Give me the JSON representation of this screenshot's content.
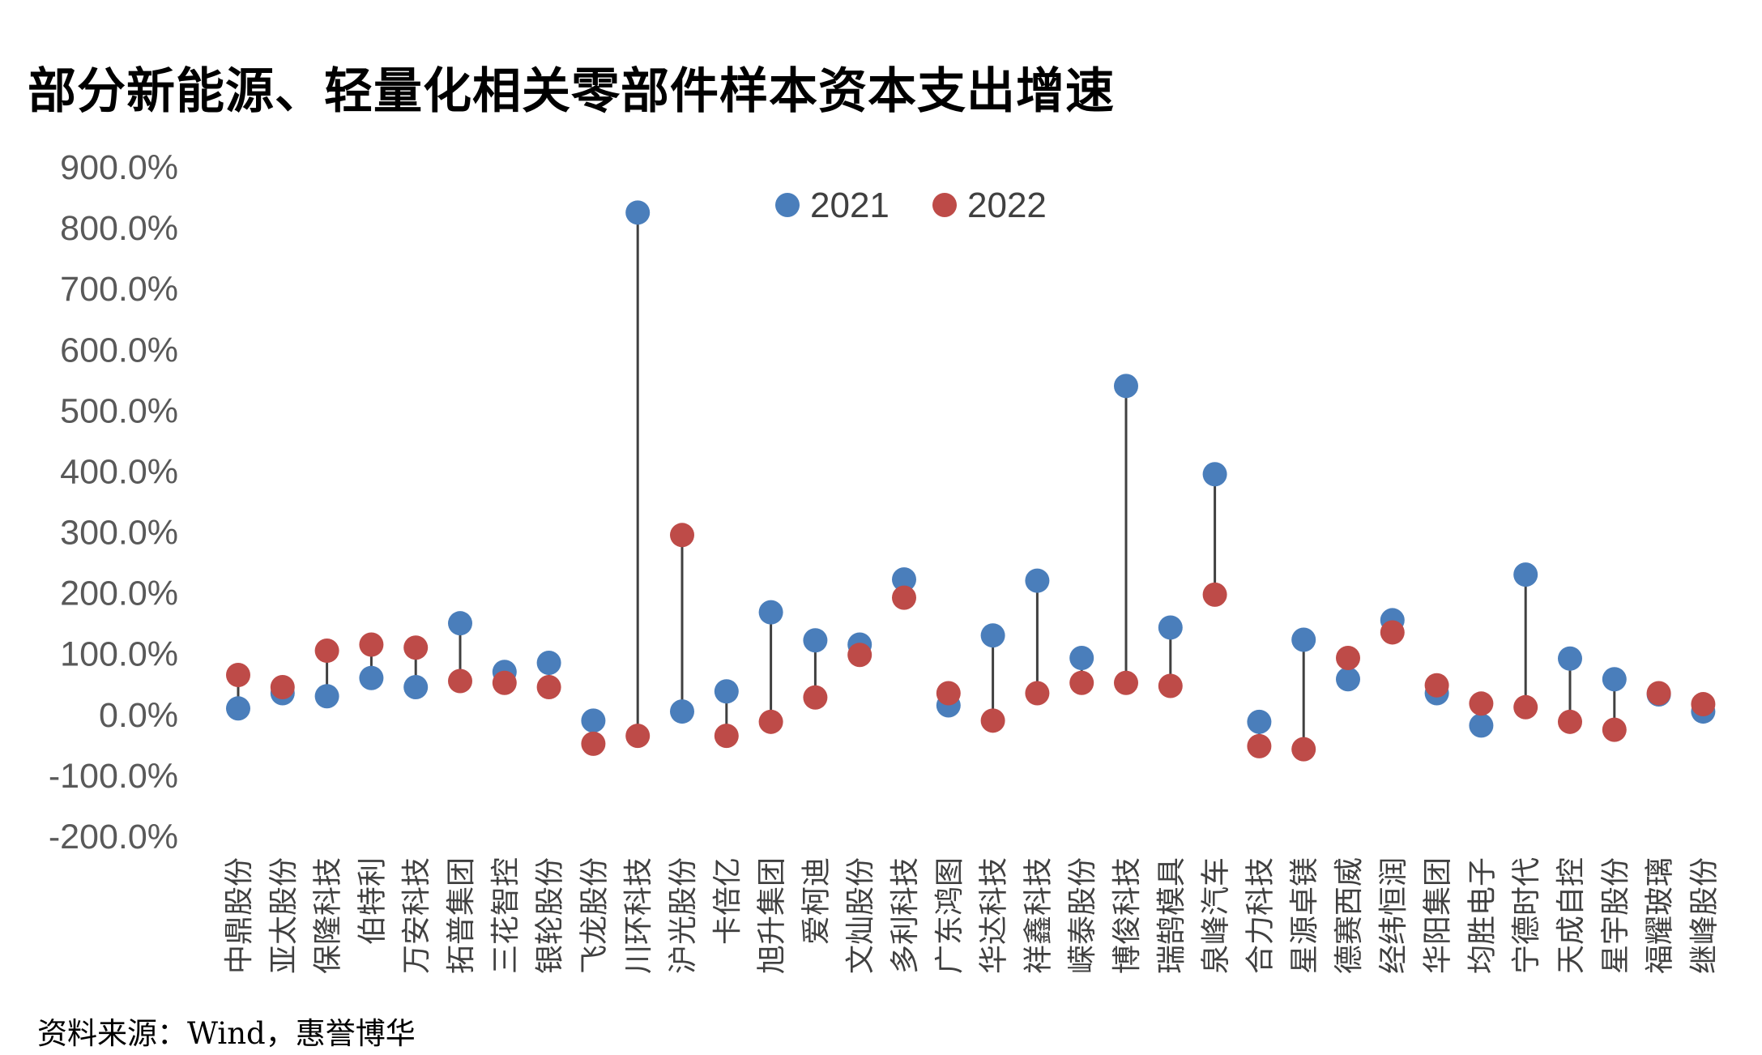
{
  "title": "部分新能源、轻量化相关零部件样本资本支出增速",
  "source": "资料来源：Wind，惠誉博华",
  "colors": {
    "s2021": "#4A7EBB",
    "s2022": "#BE4B48",
    "connector": "#404040"
  },
  "chart_data": {
    "type": "scatter",
    "title": "部分新能源、轻量化相关零部件样本资本支出增速",
    "ylim": [
      -200,
      900
    ],
    "yticks": [
      -200,
      -100,
      0,
      100,
      200,
      300,
      400,
      500,
      600,
      700,
      800,
      900
    ],
    "ytick_labels": [
      "-200.0%",
      "-100.0%",
      "0.0%",
      "100.0%",
      "200.0%",
      "300.0%",
      "400.0%",
      "500.0%",
      "600.0%",
      "700.0%",
      "800.0%",
      "900.0%"
    ],
    "legend_position": "top-center",
    "grid": false,
    "categories": [
      "中鼎股份",
      "亚太股份",
      "保隆科技",
      "伯特利",
      "万安科技",
      "拓普集团",
      "三花智控",
      "银轮股份",
      "飞龙股份",
      "川环科技",
      "沪光股份",
      "卡倍亿",
      "旭升集团",
      "爱柯迪",
      "文灿股份",
      "多利科技",
      "广东鸿图",
      "华达科技",
      "祥鑫科技",
      "嵘泰股份",
      "博俊科技",
      "瑞鹄模具",
      "泉峰汽车",
      "合力科技",
      "星源卓镁",
      "德赛西威",
      "经纬恒润",
      "华阳集团",
      "均胜电子",
      "宁德时代",
      "天成自控",
      "星宇股份",
      "福耀玻璃",
      "继峰股份"
    ],
    "series": [
      {
        "name": "2021",
        "values": [
          10,
          35,
          30,
          60,
          45,
          150,
          70,
          85,
          -10,
          825,
          5,
          38,
          168,
          122,
          115,
          222,
          15,
          130,
          220,
          93,
          540,
          143,
          395,
          -12,
          123,
          58,
          155,
          35,
          -18,
          230,
          92,
          58,
          33,
          5
        ]
      },
      {
        "name": "2022",
        "values": [
          65,
          45,
          105,
          115,
          110,
          55,
          52,
          45,
          -48,
          -35,
          295,
          -35,
          -12,
          28,
          98,
          192,
          35,
          -10,
          35,
          52,
          52,
          47,
          197,
          -52,
          -57,
          93,
          135,
          48,
          18,
          12,
          -12,
          -25,
          35,
          17
        ]
      }
    ]
  }
}
